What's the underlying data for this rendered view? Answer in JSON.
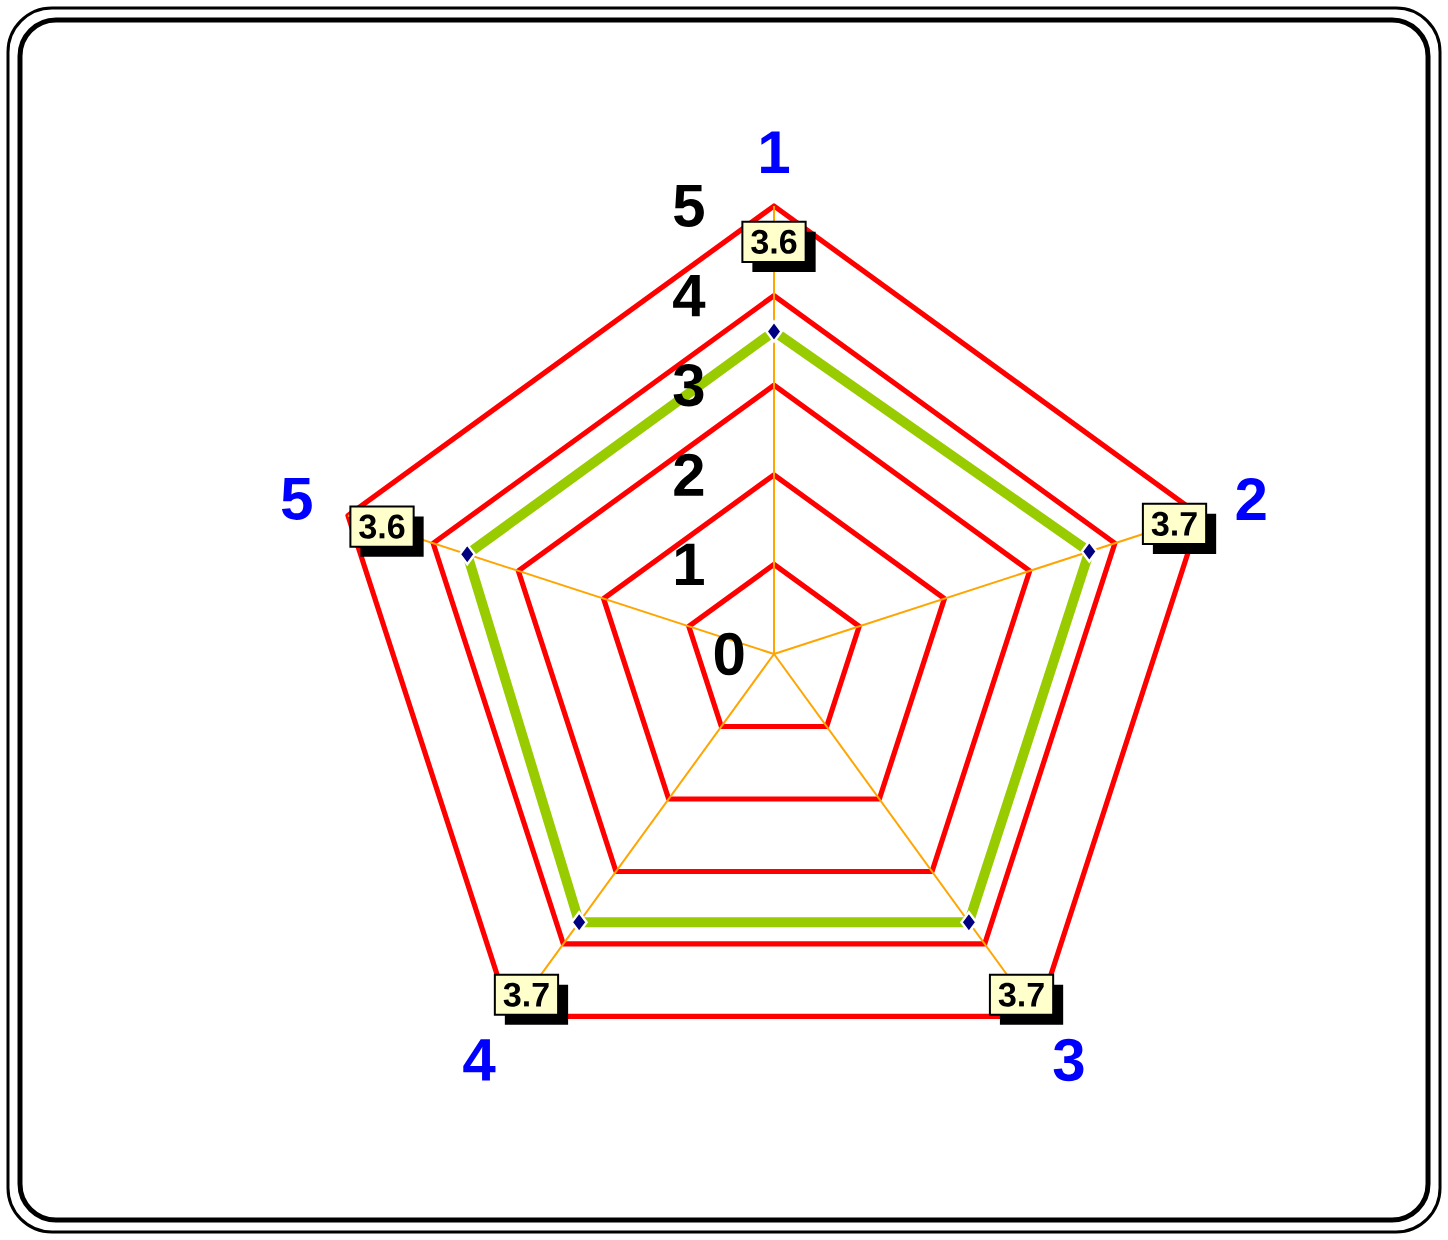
{
  "chart_data": {
    "type": "radar",
    "categories": [
      "1",
      "2",
      "3",
      "4",
      "5"
    ],
    "series": [
      {
        "color": "#99cc00",
        "values": [
          3.6,
          3.7,
          3.7,
          3.7,
          3.6
        ],
        "value_labels": [
          "3.6",
          "3.7",
          "3.7",
          "3.7",
          "3.6"
        ]
      }
    ],
    "ylim": [
      0,
      5
    ],
    "yticks": [
      0,
      1,
      2,
      3,
      4,
      5
    ],
    "grid": true,
    "marker": "diamond"
  }
}
